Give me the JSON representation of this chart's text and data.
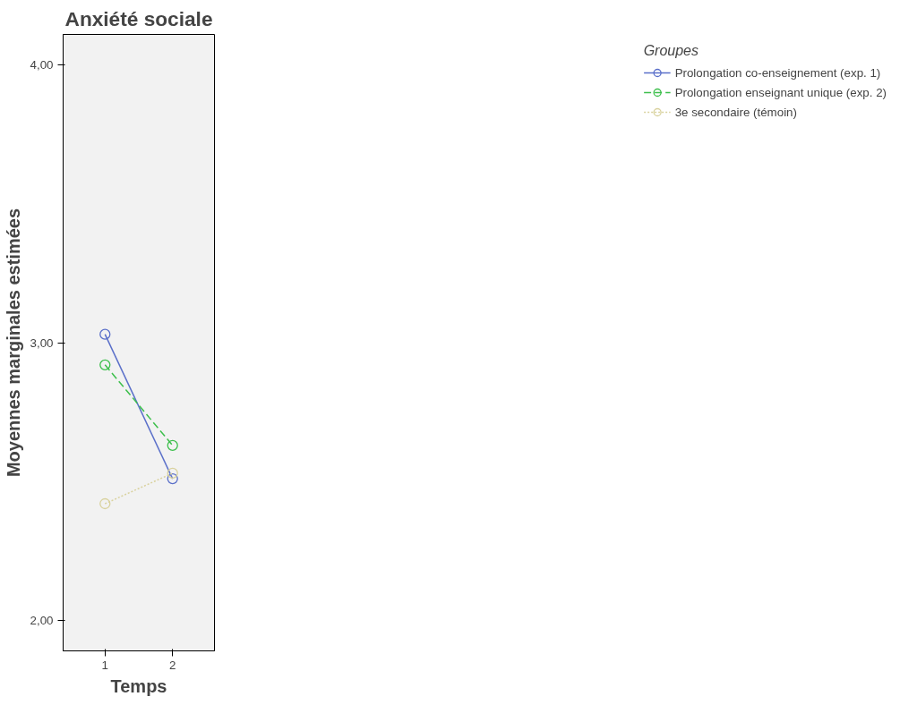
{
  "chart_data": {
    "type": "line",
    "title": "Anxiété sociale",
    "xlabel": "Temps",
    "ylabel": "Moyennes marginales estimées",
    "legend_title": "Groupes",
    "categories": [
      "1",
      "2"
    ],
    "series": [
      {
        "name": "Prolongation co-enseignement (exp. 1)",
        "color": "#5a6fc9",
        "values": [
          3.03,
          2.51
        ],
        "line_style": "solid"
      },
      {
        "name": "Prolongation enseignant unique (exp. 2)",
        "color": "#3dbf4c",
        "values": [
          2.92,
          2.63
        ],
        "line_style": "dashed"
      },
      {
        "name": "3e secondaire (témoin)",
        "color": "#d9d29e",
        "values": [
          2.42,
          2.53
        ],
        "line_style": "dotted"
      }
    ],
    "ylim": [
      1.89,
      4.11
    ],
    "yticks": [
      {
        "value": 2,
        "label": "2,00"
      },
      {
        "value": 3,
        "label": "3,00"
      },
      {
        "value": 4,
        "label": "4,00"
      }
    ],
    "grid": false,
    "legend": "top right",
    "marker": "circle"
  }
}
